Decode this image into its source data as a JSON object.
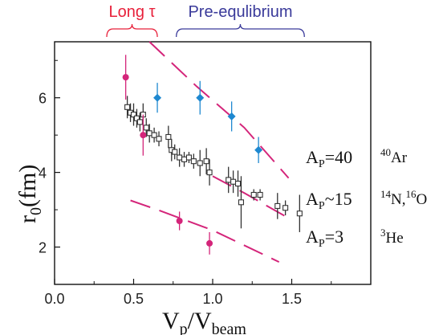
{
  "chart_data": {
    "type": "scatter",
    "title": "",
    "xlabel": "V",
    "xlabel_sub1": "p",
    "xlabel_sep": "/V",
    "xlabel_sub2": "beam",
    "ylabel": "r",
    "ylabel_sub": "0",
    "ylabel_unit": "(fm)",
    "xlim": [
      0.0,
      2.0
    ],
    "ylim": [
      1.0,
      7.5
    ],
    "xticks": [
      {
        "v": 0.0,
        "t": "0.0"
      },
      {
        "v": 0.5,
        "t": "0.5"
      },
      {
        "v": 1.0,
        "t": "1.0"
      },
      {
        "v": 1.5,
        "t": "1.5"
      }
    ],
    "yticks": [
      {
        "v": 2,
        "t": "2"
      },
      {
        "v": 4,
        "t": "4"
      },
      {
        "v": 6,
        "t": "6"
      }
    ],
    "region_labels": [
      {
        "text": "Long τ",
        "x_range": [
          0.33,
          0.65
        ],
        "color": "#e8203a"
      },
      {
        "text": "Pre-equlibrium",
        "x_range": [
          0.77,
          1.58
        ],
        "color": "#3a3a9a"
      }
    ],
    "series": [
      {
        "marker": "diamond",
        "color": "#1e88d0",
        "points": [
          {
            "x": 0.65,
            "y": 6.0,
            "err": 0.4
          },
          {
            "x": 0.92,
            "y": 6.0,
            "err": 0.45
          },
          {
            "x": 1.12,
            "y": 5.5,
            "err": 0.4
          },
          {
            "x": 1.29,
            "y": 4.6,
            "err": 0.35
          }
        ]
      },
      {
        "marker": "open-square",
        "color": "#333333",
        "points": [
          {
            "x": 0.46,
            "y": 5.75,
            "err": 0.3
          },
          {
            "x": 0.48,
            "y": 5.6,
            "err": 0.25
          },
          {
            "x": 0.5,
            "y": 5.55,
            "err": 0.3
          },
          {
            "x": 0.52,
            "y": 5.45,
            "err": 0.25
          },
          {
            "x": 0.54,
            "y": 5.35,
            "err": 0.25
          },
          {
            "x": 0.56,
            "y": 5.55,
            "err": 0.3
          },
          {
            "x": 0.58,
            "y": 5.2,
            "err": 0.25
          },
          {
            "x": 0.6,
            "y": 5.05,
            "err": 0.25
          },
          {
            "x": 0.63,
            "y": 5.0,
            "err": 0.2
          },
          {
            "x": 0.66,
            "y": 4.9,
            "err": 0.2
          },
          {
            "x": 0.72,
            "y": 4.95,
            "err": 0.3
          },
          {
            "x": 0.74,
            "y": 4.6,
            "err": 0.3
          },
          {
            "x": 0.76,
            "y": 4.55,
            "err": 0.2
          },
          {
            "x": 0.79,
            "y": 4.4,
            "err": 0.25
          },
          {
            "x": 0.82,
            "y": 4.35,
            "err": 0.2
          },
          {
            "x": 0.85,
            "y": 4.4,
            "err": 0.15
          },
          {
            "x": 0.88,
            "y": 4.3,
            "err": 0.2
          },
          {
            "x": 0.92,
            "y": 4.25,
            "err": 0.35
          },
          {
            "x": 0.96,
            "y": 4.3,
            "err": 0.35
          },
          {
            "x": 0.98,
            "y": 4.0,
            "err": 0.35
          },
          {
            "x": 1.1,
            "y": 3.8,
            "err": 0.35
          },
          {
            "x": 1.13,
            "y": 3.75,
            "err": 0.3
          },
          {
            "x": 1.16,
            "y": 3.7,
            "err": 0.35
          },
          {
            "x": 1.18,
            "y": 3.2,
            "err": 0.7
          },
          {
            "x": 1.26,
            "y": 3.4,
            "err": 0.15
          },
          {
            "x": 1.3,
            "y": 3.4,
            "err": 0.15
          },
          {
            "x": 1.41,
            "y": 3.1,
            "err": 0.35
          },
          {
            "x": 1.46,
            "y": 3.05,
            "err": 0.2
          },
          {
            "x": 1.55,
            "y": 2.9,
            "err": 0.5
          }
        ]
      },
      {
        "marker": "filled-circle",
        "color": "#d4257a",
        "points": [
          {
            "x": 0.45,
            "y": 6.55,
            "err": 0.6
          },
          {
            "x": 0.56,
            "y": 5.0,
            "err": 0.55
          },
          {
            "x": 0.79,
            "y": 2.7,
            "err": 0.25
          },
          {
            "x": 0.98,
            "y": 2.1,
            "err": 0.3
          }
        ]
      }
    ],
    "curves": [
      {
        "label": "A",
        "sub": "P",
        "rel": "=40",
        "nucleus": "40Ar",
        "points": [
          {
            "x": 0.6,
            "y": 7.5
          },
          {
            "x": 0.9,
            "y": 6.3
          },
          {
            "x": 1.2,
            "y": 5.2
          },
          {
            "x": 1.48,
            "y": 3.85
          }
        ]
      },
      {
        "label": "A",
        "sub": "P",
        "rel": "~15",
        "nucleus": "14N,16O",
        "points": [
          {
            "x": 1.0,
            "y": 3.9
          },
          {
            "x": 1.2,
            "y": 3.45
          },
          {
            "x": 1.47,
            "y": 2.8
          }
        ]
      },
      {
        "label": "A",
        "sub": "P",
        "rel": "=3",
        "nucleus": "3He",
        "points": [
          {
            "x": 0.48,
            "y": 3.25
          },
          {
            "x": 0.65,
            "y": 3.0
          },
          {
            "x": 1.0,
            "y": 2.45
          },
          {
            "x": 1.42,
            "y": 1.6
          }
        ]
      }
    ],
    "curve_color": "#d4257a",
    "grid": false,
    "legend": "none"
  }
}
